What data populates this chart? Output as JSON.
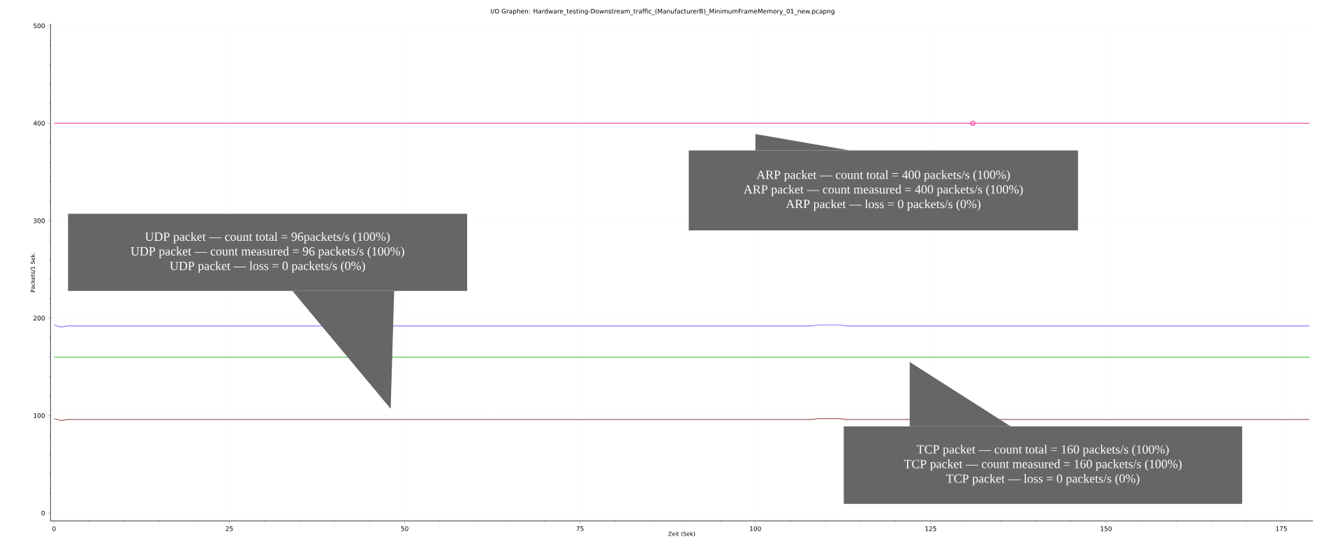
{
  "chart_data": {
    "type": "line",
    "title": "I/O Graphen: Hardware_testing-Downstream_traffic_(ManufacturerB)_MinimumFrameMemory_01_new.pcapng",
    "xlabel": "Zeit (Sek)",
    "ylabel": "Packets/1 Sek.",
    "xlim": [
      -0.5,
      179.5
    ],
    "ylim": [
      -8,
      502
    ],
    "xticks": [
      0,
      25,
      50,
      75,
      100,
      125,
      150,
      175
    ],
    "yticks": [
      0,
      100,
      200,
      300,
      400,
      500
    ],
    "grid": true,
    "marker": "none",
    "line_style": "solid",
    "series": [
      {
        "color": "#ff3399",
        "x": [
          0,
          179
        ],
        "values": [
          400,
          400
        ]
      },
      {
        "color": "#8080ff",
        "x": [
          0,
          1,
          2,
          108,
          109,
          112,
          113,
          179
        ],
        "values": [
          193,
          191,
          192,
          192,
          193,
          193,
          192,
          192
        ]
      },
      {
        "color": "#50c850",
        "x": [
          0,
          179
        ],
        "values": [
          160,
          160
        ]
      },
      {
        "color": "#a05a5a",
        "x": [
          0,
          1,
          2,
          108,
          109,
          112,
          113,
          179
        ],
        "values": [
          97,
          95,
          96,
          96,
          97,
          97,
          96,
          96
        ]
      },
      {
        "type": "scatter",
        "marker": "circle",
        "color": "#ff3399",
        "x": [
          131
        ],
        "values": [
          400
        ]
      }
    ],
    "annotations": [
      "UDP packet — count total  = 96packets/s (100%)",
      "UDP packet — count measured  = 96 packets/s (100%)",
      "UDP packet — loss  = 0 packets/s (0%)",
      "ARP packet — count total  = 400 packets/s (100%)",
      "ARP packet — count measured  = 400 packets/s (100%)",
      "ARP packet — loss  = 0 packets/s (0%)",
      "TCP packet — count total  = 160 packets/s (100%)",
      "TCP packet — count measured  = 160 packets/s (100%)",
      "TCP packet — loss  = 0 packets/s (0%)"
    ]
  }
}
